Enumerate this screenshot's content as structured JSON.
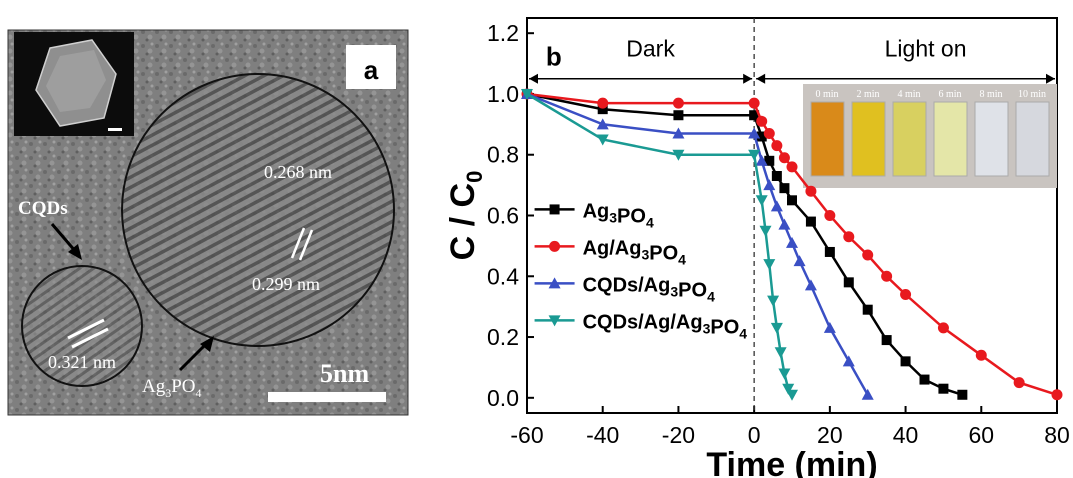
{
  "panel_a": {
    "label": "a",
    "annotations": {
      "lattice_1": "0.268 nm",
      "lattice_2": "0.299 nm",
      "lattice_3": "0.321 nm",
      "cqds": "CQDs",
      "ag3po4_prefix": "Ag",
      "ag3po4_sub1": "3",
      "ag3po4_mid": "PO",
      "ag3po4_sub2": "4",
      "scalebar": "5nm"
    },
    "colors": {
      "background": "#7d7d7d",
      "circle": "#111111",
      "label_box": "#ffffff"
    }
  },
  "chart_data": {
    "type": "line",
    "panel_label": "b",
    "xlabel": "Time (min)",
    "ylabel": "C / C",
    "ylabel_sub": "0",
    "xlim": [
      -60,
      80
    ],
    "ylim": [
      -0.05,
      1.25
    ],
    "xticks": [
      "-60",
      "-40",
      "-20",
      "0",
      "20",
      "40",
      "60",
      "80"
    ],
    "yticks": [
      "0.0",
      "0.2",
      "0.4",
      "0.6",
      "0.8",
      "1.0",
      "1.2"
    ],
    "regions": {
      "dark": "Dark",
      "light": "Light on"
    },
    "legend_position": "left-middle",
    "inset_times": [
      "0 min",
      "2 min",
      "4 min",
      "6 min",
      "8 min",
      "10 min"
    ],
    "series": [
      {
        "name": "Ag3PO4",
        "color": "#000000",
        "marker": "square",
        "points": [
          [
            -60,
            1.0
          ],
          [
            -40,
            0.95
          ],
          [
            -20,
            0.93
          ],
          [
            0,
            0.93
          ],
          [
            2,
            0.86
          ],
          [
            4,
            0.78
          ],
          [
            6,
            0.73
          ],
          [
            8,
            0.69
          ],
          [
            10,
            0.65
          ],
          [
            15,
            0.58
          ],
          [
            20,
            0.48
          ],
          [
            25,
            0.38
          ],
          [
            30,
            0.29
          ],
          [
            35,
            0.19
          ],
          [
            40,
            0.12
          ],
          [
            45,
            0.06
          ],
          [
            50,
            0.03
          ],
          [
            55,
            0.01
          ]
        ]
      },
      {
        "name": "Ag/Ag3PO4",
        "color": "#e8191e",
        "marker": "circle",
        "points": [
          [
            -60,
            1.0
          ],
          [
            -40,
            0.97
          ],
          [
            -20,
            0.97
          ],
          [
            0,
            0.97
          ],
          [
            2,
            0.91
          ],
          [
            4,
            0.87
          ],
          [
            6,
            0.83
          ],
          [
            8,
            0.79
          ],
          [
            10,
            0.76
          ],
          [
            15,
            0.68
          ],
          [
            20,
            0.6
          ],
          [
            25,
            0.53
          ],
          [
            30,
            0.47
          ],
          [
            35,
            0.4
          ],
          [
            40,
            0.34
          ],
          [
            50,
            0.23
          ],
          [
            60,
            0.14
          ],
          [
            70,
            0.05
          ],
          [
            80,
            0.01
          ]
        ]
      },
      {
        "name": "CQDs/Ag3PO4",
        "color": "#3a4fc4",
        "marker": "triangle",
        "points": [
          [
            -60,
            1.0
          ],
          [
            -40,
            0.9
          ],
          [
            -20,
            0.87
          ],
          [
            0,
            0.87
          ],
          [
            2,
            0.78
          ],
          [
            4,
            0.7
          ],
          [
            6,
            0.63
          ],
          [
            8,
            0.57
          ],
          [
            10,
            0.51
          ],
          [
            12,
            0.45
          ],
          [
            15,
            0.37
          ],
          [
            20,
            0.23
          ],
          [
            25,
            0.12
          ],
          [
            30,
            0.01
          ]
        ]
      },
      {
        "name": "CQDs/Ag/Ag3PO4",
        "color": "#1a9a93",
        "marker": "triangle-down",
        "points": [
          [
            -60,
            1.0
          ],
          [
            -40,
            0.85
          ],
          [
            -20,
            0.8
          ],
          [
            0,
            0.8
          ],
          [
            2,
            0.65
          ],
          [
            3,
            0.55
          ],
          [
            4,
            0.44
          ],
          [
            5,
            0.32
          ],
          [
            6,
            0.23
          ],
          [
            7,
            0.15
          ],
          [
            8,
            0.08
          ],
          [
            9,
            0.03
          ],
          [
            10,
            0.01
          ]
        ]
      }
    ]
  }
}
